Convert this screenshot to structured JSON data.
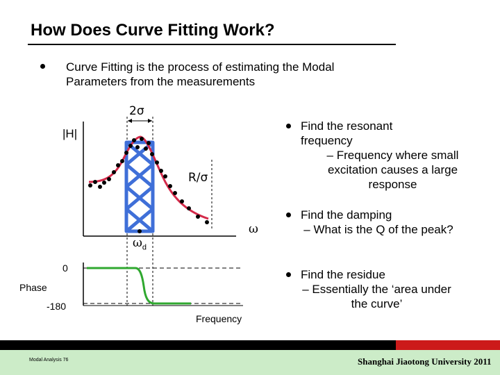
{
  "title": "How Does Curve Fitting Work?",
  "intro_bullet": "Curve Fitting is the process of estimating the Modal Parameters from the measurements",
  "right_bullets": [
    {
      "main": "Find the resonant frequency",
      "sub": "– Frequency where small excitation causes a large response"
    },
    {
      "main": "Find the damping",
      "sub": "– What is the Q of the peak?"
    },
    {
      "main": "Find the residue",
      "sub": "– Essentially the ‘area under the curve’"
    }
  ],
  "diagram": {
    "two_sigma": "2σ",
    "h_label": "|H|",
    "r_sigma": "R/σ",
    "omega": "ω",
    "omega_d": "ω",
    "omega_d_sub": "d",
    "phase_label": "Phase",
    "phase_zero": "0",
    "phase_minus": "-180",
    "frequency_label": "Frequency"
  },
  "footer": {
    "left": "Modal Analysis 76",
    "right": "Shanghai Jiaotong University 2011"
  },
  "colors": {
    "curve": "#d42a4a",
    "bars": "#3f6fd8",
    "phase": "#2fa82f",
    "footer_band": "#ccecc8",
    "footer_red": "#cc1a1a"
  }
}
